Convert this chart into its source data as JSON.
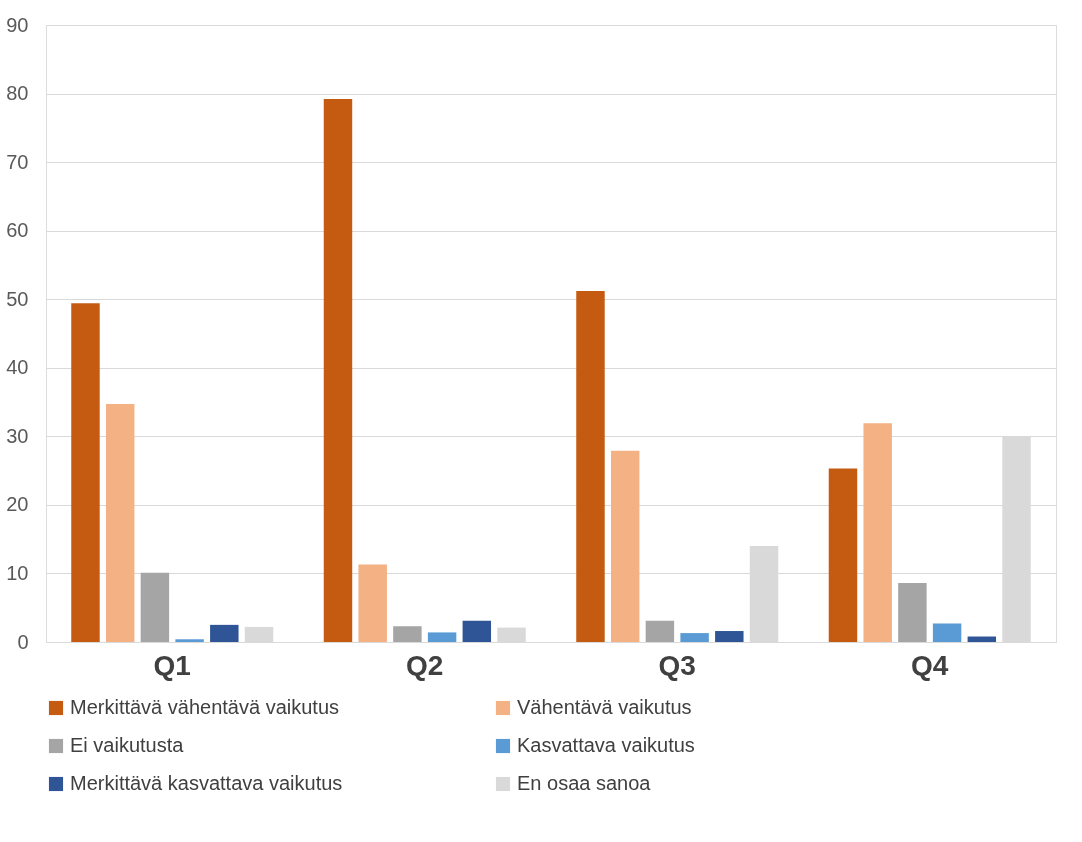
{
  "chart_data": {
    "type": "bar",
    "categories": [
      "Q1",
      "Q2",
      "Q3",
      "Q4"
    ],
    "series": [
      {
        "name": "Merkittävä vähentävä vaikutus",
        "color": "#c55a11",
        "values": [
          49.4,
          79.2,
          51.2,
          25.3
        ]
      },
      {
        "name": "Vähentävä vaikutus",
        "color": "#f4b183",
        "values": [
          34.7,
          11.3,
          27.9,
          31.9
        ]
      },
      {
        "name": "Ei vaikutusta",
        "color": "#a5a5a5",
        "values": [
          10.1,
          2.3,
          3.1,
          8.6
        ]
      },
      {
        "name": "Kasvattava vaikutus",
        "color": "#5b9bd5",
        "values": [
          0.4,
          1.4,
          1.3,
          2.7
        ]
      },
      {
        "name": "Merkittävä kasvattava vaikutus",
        "color": "#2f5597",
        "values": [
          2.5,
          3.1,
          1.6,
          0.8
        ]
      },
      {
        "name": "En osaa sanoa",
        "color": "#d9d9d9",
        "values": [
          2.2,
          2.1,
          14.0,
          30.0
        ]
      }
    ],
    "ylim": [
      0,
      90
    ],
    "yticks": [
      0,
      10,
      20,
      30,
      40,
      50,
      60,
      70,
      80,
      90
    ],
    "grid": "y",
    "legend": "bottom"
  }
}
